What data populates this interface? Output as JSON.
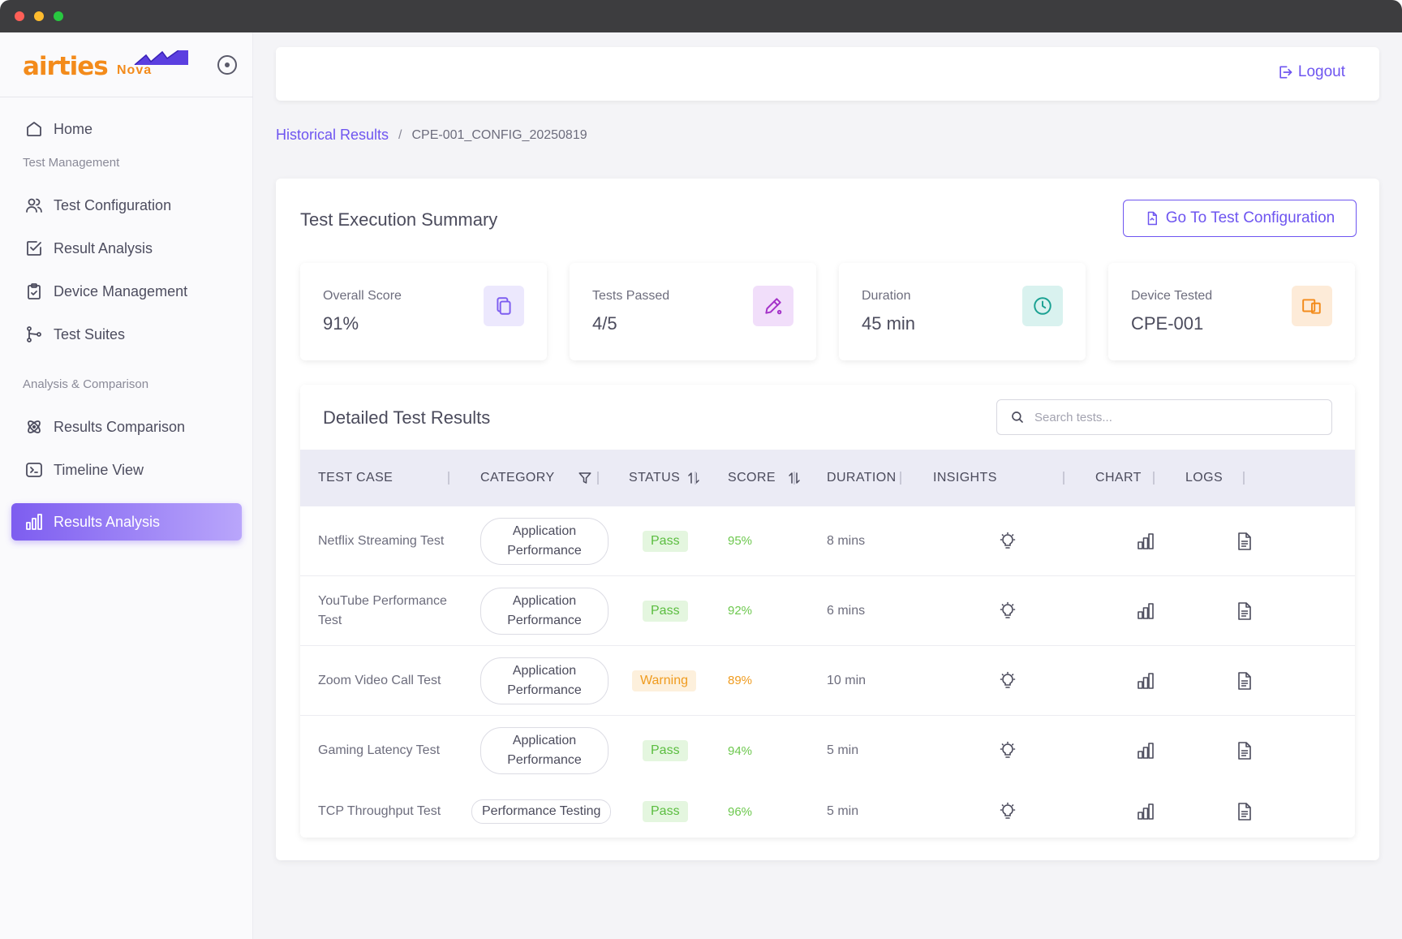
{
  "window": {
    "controls": [
      "close",
      "minimize",
      "maximize"
    ]
  },
  "brand": {
    "logo_text": "airties",
    "logo_sub": "Nova",
    "accent": "#f38b1b"
  },
  "sidebar": {
    "home": "Home",
    "section_management": "Test Management",
    "management_items": [
      {
        "label": "Test Configuration",
        "icon": "users-icon"
      },
      {
        "label": "Result Analysis",
        "icon": "checkbox-icon"
      },
      {
        "label": "Device Management",
        "icon": "clipboard-icon"
      },
      {
        "label": "Test Suites",
        "icon": "branch-icon"
      }
    ],
    "section_analysis": "Analysis & Comparison",
    "analysis_items": [
      {
        "label": "Results Comparison",
        "icon": "atom-icon"
      },
      {
        "label": "Timeline View",
        "icon": "terminal-icon"
      },
      {
        "label": "Results Analysis",
        "icon": "bar-chart-icon",
        "active": true
      }
    ]
  },
  "header": {
    "logout_label": "Logout"
  },
  "breadcrumb": {
    "parent": "Historical Results",
    "separator": "/",
    "current": "CPE-001_CONFIG_20250819"
  },
  "summary": {
    "title": "Test Execution Summary",
    "goto_button": "Go To Test Configuration",
    "stats": [
      {
        "label": "Overall Score",
        "value": "91%",
        "icon": "copy-icon",
        "icon_bg": "#ece8fd",
        "icon_color": "#7d5df0"
      },
      {
        "label": "Tests Passed",
        "value": "4/5",
        "icon": "pencil-icon",
        "icon_bg": "#f1defa",
        "icon_color": "#a431c8"
      },
      {
        "label": "Duration",
        "value": "45 min",
        "icon": "clock-icon",
        "icon_bg": "#d9f2ef",
        "icon_color": "#1aa192"
      },
      {
        "label": "Device Tested",
        "value": "CPE-001",
        "icon": "devices-icon",
        "icon_bg": "#fdebd8",
        "icon_color": "#f38b1b"
      }
    ]
  },
  "results": {
    "title": "Detailed Test Results",
    "search_placeholder": "Search tests...",
    "columns": [
      "TEST CASE",
      "CATEGORY",
      "STATUS",
      "SCORE",
      "DURATION",
      "INSIGHTS",
      "CHART",
      "LOGS"
    ],
    "rows": [
      {
        "test_case": "Netflix Streaming Test",
        "category": "Application Performance",
        "status": "Pass",
        "score": "95%",
        "duration": "8 mins"
      },
      {
        "test_case": "YouTube Performance Test",
        "category": "Application Performance",
        "status": "Pass",
        "score": "92%",
        "duration": "6 mins"
      },
      {
        "test_case": "Zoom Video Call Test",
        "category": "Application Performance",
        "status": "Warning",
        "score": "89%",
        "duration": "10 min"
      },
      {
        "test_case": "Gaming Latency Test",
        "category": "Application Performance",
        "status": "Pass",
        "score": "94%",
        "duration": "5 min"
      },
      {
        "test_case": "TCP Throughput Test",
        "category": "Performance Testing",
        "status": "Pass",
        "score": "96%",
        "duration": "5 min"
      }
    ]
  },
  "colors": {
    "primary": "#6e55f0",
    "pass": "#5bbd40",
    "warning": "#ef9b1e"
  }
}
